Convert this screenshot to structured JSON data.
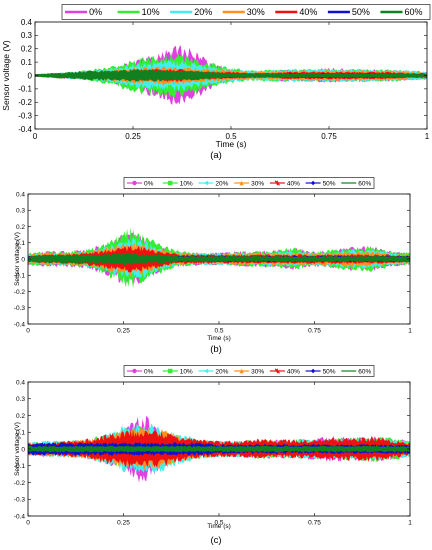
{
  "chart_data": [
    {
      "type": "area",
      "panel_label": "(a)",
      "xlabel": "Time (s)",
      "ylabel": "Sensor voltage (V)",
      "xlim": [
        0,
        1
      ],
      "ylim": [
        -0.4,
        0.4
      ],
      "xticks": [
        "0",
        "0.25",
        "0.5",
        "0.75",
        "1"
      ],
      "yticks": [
        "-0.4",
        "-0.3",
        "-0.2",
        "-0.1",
        "0",
        "0.1",
        "0.2",
        "0.3",
        "0.4"
      ],
      "legend_position": "top-center",
      "marker_style": "line",
      "x": [
        0,
        0.05,
        0.1,
        0.15,
        0.2,
        0.25,
        0.3,
        0.35,
        0.37,
        0.4,
        0.45,
        0.5,
        0.55,
        0.6,
        0.65,
        0.7,
        0.75,
        0.8,
        0.85,
        0.9,
        0.95,
        1
      ],
      "series": [
        {
          "name": "0%",
          "color": "#e040e0",
          "values": [
            0.01,
            0.02,
            0.03,
            0.04,
            0.06,
            0.12,
            0.16,
            0.22,
            0.25,
            0.2,
            0.1,
            0.05,
            0.03,
            0.04,
            0.05,
            0.05,
            0.06,
            0.05,
            0.05,
            0.05,
            0.04,
            0.03
          ]
        },
        {
          "name": "10%",
          "color": "#33ee33",
          "values": [
            0.01,
            0.02,
            0.03,
            0.05,
            0.08,
            0.13,
            0.16,
            0.18,
            0.18,
            0.15,
            0.1,
            0.06,
            0.04,
            0.05,
            0.05,
            0.05,
            0.05,
            0.05,
            0.05,
            0.05,
            0.04,
            0.03
          ]
        },
        {
          "name": "20%",
          "color": "#44eeee",
          "values": [
            0.01,
            0.02,
            0.03,
            0.04,
            0.06,
            0.09,
            0.11,
            0.12,
            0.12,
            0.1,
            0.07,
            0.05,
            0.04,
            0.04,
            0.05,
            0.05,
            0.05,
            0.05,
            0.05,
            0.04,
            0.04,
            0.03
          ]
        },
        {
          "name": "30%",
          "color": "#ff9020",
          "values": [
            0.01,
            0.02,
            0.02,
            0.03,
            0.05,
            0.06,
            0.07,
            0.07,
            0.07,
            0.06,
            0.05,
            0.04,
            0.03,
            0.03,
            0.04,
            0.04,
            0.04,
            0.04,
            0.04,
            0.04,
            0.03,
            0.02
          ]
        },
        {
          "name": "40%",
          "color": "#ee1111",
          "values": [
            0.01,
            0.01,
            0.02,
            0.02,
            0.03,
            0.04,
            0.05,
            0.05,
            0.05,
            0.04,
            0.03,
            0.03,
            0.02,
            0.02,
            0.03,
            0.03,
            0.03,
            0.03,
            0.03,
            0.03,
            0.02,
            0.02
          ]
        },
        {
          "name": "50%",
          "color": "#1010cc",
          "values": [
            0.01,
            0.01,
            0.01,
            0.02,
            0.02,
            0.02,
            0.02,
            0.02,
            0.02,
            0.02,
            0.02,
            0.02,
            0.01,
            0.01,
            0.02,
            0.02,
            0.02,
            0.02,
            0.02,
            0.02,
            0.01,
            0.01
          ]
        },
        {
          "name": "60%",
          "color": "#108020",
          "values": [
            0.01,
            0.02,
            0.03,
            0.04,
            0.04,
            0.05,
            0.05,
            0.04,
            0.04,
            0.04,
            0.03,
            0.02,
            0.02,
            0.02,
            0.02,
            0.02,
            0.02,
            0.02,
            0.02,
            0.02,
            0.02,
            0.01
          ]
        }
      ]
    },
    {
      "type": "area",
      "panel_label": "(b)",
      "xlabel": "Time (s)",
      "ylabel": "Sensor voltage (V)",
      "xlim": [
        0,
        1
      ],
      "ylim": [
        -0.4,
        0.4
      ],
      "xticks": [
        "0",
        "0.25",
        "0.5",
        "0.75",
        "1"
      ],
      "yticks": [
        "-0.4",
        "-0.3",
        "-0.2",
        "-0.1",
        "0",
        "0.1",
        "0.2",
        "0.3",
        "0.4"
      ],
      "legend_position": "top-center",
      "marker_style": "marker",
      "x": [
        0,
        0.05,
        0.1,
        0.15,
        0.2,
        0.25,
        0.27,
        0.3,
        0.35,
        0.4,
        0.45,
        0.5,
        0.55,
        0.6,
        0.65,
        0.7,
        0.75,
        0.8,
        0.85,
        0.9,
        0.95,
        1
      ],
      "series": [
        {
          "name": "0%",
          "color": "#e040e0",
          "values": [
            0.04,
            0.05,
            0.05,
            0.06,
            0.1,
            0.16,
            0.18,
            0.15,
            0.08,
            0.05,
            0.04,
            0.04,
            0.05,
            0.05,
            0.06,
            0.07,
            0.05,
            0.06,
            0.08,
            0.08,
            0.05,
            0.04
          ]
        },
        {
          "name": "10%",
          "color": "#33ee33",
          "values": [
            0.04,
            0.05,
            0.05,
            0.06,
            0.1,
            0.17,
            0.2,
            0.16,
            0.09,
            0.05,
            0.04,
            0.04,
            0.05,
            0.05,
            0.06,
            0.07,
            0.05,
            0.06,
            0.08,
            0.08,
            0.05,
            0.04
          ]
        },
        {
          "name": "20%",
          "color": "#44eeee",
          "values": [
            0.03,
            0.04,
            0.04,
            0.05,
            0.08,
            0.12,
            0.14,
            0.12,
            0.07,
            0.04,
            0.04,
            0.04,
            0.04,
            0.04,
            0.05,
            0.05,
            0.04,
            0.05,
            0.06,
            0.06,
            0.04,
            0.03
          ]
        },
        {
          "name": "30%",
          "color": "#ff9020",
          "values": [
            0.03,
            0.04,
            0.04,
            0.05,
            0.07,
            0.1,
            0.11,
            0.1,
            0.06,
            0.04,
            0.03,
            0.03,
            0.04,
            0.04,
            0.04,
            0.04,
            0.04,
            0.04,
            0.05,
            0.05,
            0.03,
            0.03
          ]
        },
        {
          "name": "40%",
          "color": "#ee1111",
          "values": [
            0.02,
            0.03,
            0.03,
            0.04,
            0.06,
            0.08,
            0.09,
            0.08,
            0.05,
            0.03,
            0.03,
            0.03,
            0.03,
            0.03,
            0.03,
            0.03,
            0.03,
            0.03,
            0.03,
            0.03,
            0.03,
            0.02
          ]
        },
        {
          "name": "50%",
          "color": "#1010cc",
          "values": [
            0.02,
            0.02,
            0.02,
            0.02,
            0.02,
            0.02,
            0.02,
            0.02,
            0.02,
            0.02,
            0.02,
            0.02,
            0.02,
            0.02,
            0.02,
            0.02,
            0.02,
            0.02,
            0.02,
            0.02,
            0.02,
            0.02
          ]
        },
        {
          "name": "60%",
          "color": "#108020",
          "values": [
            0.02,
            0.03,
            0.03,
            0.03,
            0.03,
            0.04,
            0.04,
            0.03,
            0.03,
            0.02,
            0.02,
            0.02,
            0.02,
            0.02,
            0.02,
            0.02,
            0.02,
            0.02,
            0.02,
            0.02,
            0.02,
            0.02
          ]
        }
      ]
    },
    {
      "type": "area",
      "panel_label": "(c)",
      "xlabel": "Time (s)",
      "ylabel": "Sensor voltage (V)",
      "xlim": [
        0,
        1
      ],
      "ylim": [
        -0.4,
        0.4
      ],
      "xticks": [
        "0",
        "0.25",
        "0.5",
        "0.75",
        "1"
      ],
      "yticks": [
        "-0.4",
        "-0.3",
        "-0.2",
        "-0.1",
        "0",
        "0.1",
        "0.2",
        "0.3",
        "0.4"
      ],
      "legend_position": "top-center",
      "marker_style": "marker",
      "x": [
        0,
        0.05,
        0.1,
        0.15,
        0.2,
        0.25,
        0.3,
        0.35,
        0.4,
        0.45,
        0.5,
        0.55,
        0.6,
        0.65,
        0.7,
        0.75,
        0.8,
        0.85,
        0.9,
        0.95,
        1
      ],
      "series": [
        {
          "name": "0%",
          "color": "#e040e0",
          "values": [
            0.04,
            0.05,
            0.05,
            0.06,
            0.09,
            0.14,
            0.22,
            0.12,
            0.07,
            0.05,
            0.05,
            0.05,
            0.06,
            0.06,
            0.06,
            0.07,
            0.08,
            0.07,
            0.08,
            0.07,
            0.05
          ]
        },
        {
          "name": "10%",
          "color": "#33ee33",
          "values": [
            0.04,
            0.05,
            0.05,
            0.06,
            0.09,
            0.13,
            0.15,
            0.12,
            0.08,
            0.06,
            0.05,
            0.05,
            0.06,
            0.06,
            0.06,
            0.06,
            0.07,
            0.07,
            0.08,
            0.07,
            0.05
          ]
        },
        {
          "name": "20%",
          "color": "#44eeee",
          "values": [
            0.04,
            0.05,
            0.05,
            0.06,
            0.09,
            0.14,
            0.16,
            0.14,
            0.09,
            0.06,
            0.05,
            0.05,
            0.05,
            0.06,
            0.06,
            0.06,
            0.06,
            0.06,
            0.07,
            0.06,
            0.05
          ]
        },
        {
          "name": "30%",
          "color": "#ff9020",
          "values": [
            0.04,
            0.04,
            0.05,
            0.06,
            0.08,
            0.12,
            0.13,
            0.12,
            0.08,
            0.06,
            0.05,
            0.05,
            0.05,
            0.05,
            0.05,
            0.05,
            0.05,
            0.05,
            0.05,
            0.05,
            0.04
          ]
        },
        {
          "name": "40%",
          "color": "#ee1111",
          "values": [
            0.04,
            0.04,
            0.05,
            0.06,
            0.09,
            0.11,
            0.12,
            0.11,
            0.08,
            0.06,
            0.05,
            0.05,
            0.06,
            0.06,
            0.06,
            0.06,
            0.07,
            0.07,
            0.08,
            0.06,
            0.04
          ]
        },
        {
          "name": "50%",
          "color": "#1010cc",
          "values": [
            0.04,
            0.04,
            0.04,
            0.04,
            0.04,
            0.04,
            0.04,
            0.04,
            0.04,
            0.04,
            0.03,
            0.03,
            0.03,
            0.03,
            0.03,
            0.03,
            0.03,
            0.03,
            0.03,
            0.03,
            0.03
          ]
        },
        {
          "name": "60%",
          "color": "#108020",
          "values": [
            0.02,
            0.02,
            0.02,
            0.02,
            0.02,
            0.02,
            0.02,
            0.02,
            0.02,
            0.02,
            0.02,
            0.02,
            0.02,
            0.02,
            0.02,
            0.02,
            0.02,
            0.02,
            0.02,
            0.02,
            0.02
          ]
        }
      ]
    }
  ]
}
